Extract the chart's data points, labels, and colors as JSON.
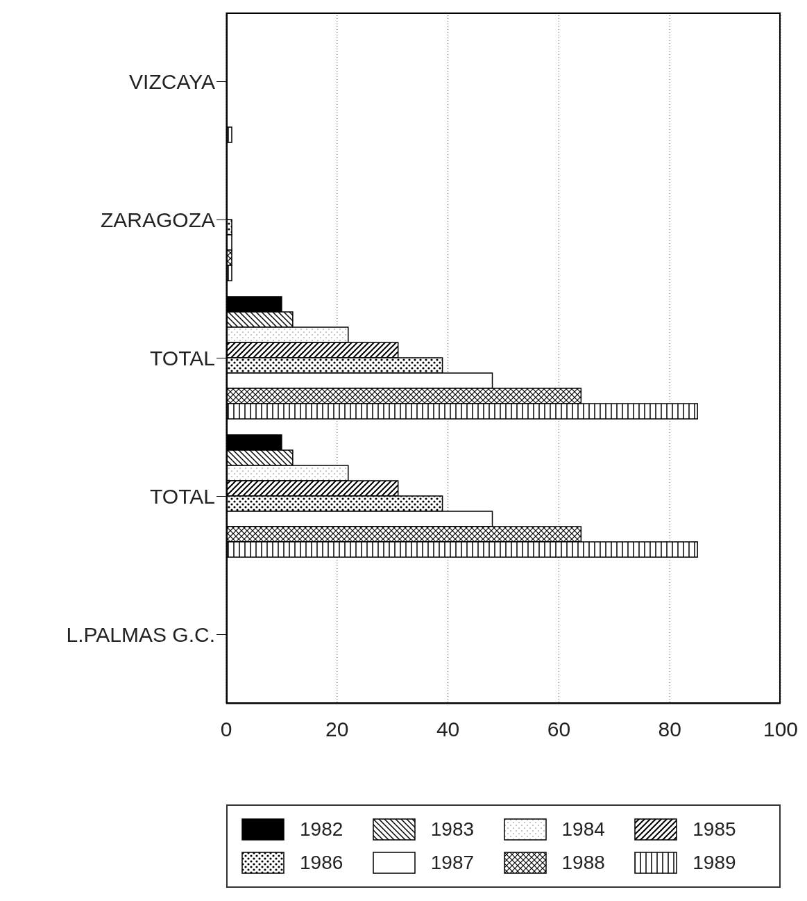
{
  "chart_data": {
    "type": "bar",
    "orientation": "horizontal",
    "categories": [
      "VIZCAYA",
      "ZARAGOZA",
      "TOTAL",
      "TOTAL",
      "L.PALMAS G.C."
    ],
    "series": [
      {
        "name": "1982",
        "color": "#000000",
        "values": [
          0,
          0,
          10,
          10,
          0
        ]
      },
      {
        "name": "1983",
        "color": "#000000",
        "values": [
          0,
          0,
          12,
          12,
          0
        ]
      },
      {
        "name": "1984",
        "color": "#000000",
        "values": [
          0,
          0,
          22,
          22,
          0
        ]
      },
      {
        "name": "1985",
        "color": "#000000",
        "values": [
          0,
          0,
          31,
          31,
          0
        ]
      },
      {
        "name": "1986",
        "color": "#000000",
        "values": [
          0,
          1,
          39,
          39,
          0
        ]
      },
      {
        "name": "1987",
        "color": "#000000",
        "values": [
          0,
          1,
          48,
          48,
          0
        ]
      },
      {
        "name": "1988",
        "color": "#000000",
        "values": [
          0,
          1,
          64,
          64,
          0
        ]
      },
      {
        "name": "1989",
        "color": "#000000",
        "values": [
          1,
          1,
          85,
          85,
          0
        ]
      }
    ],
    "xlim": [
      0,
      100
    ],
    "xticks": [
      0,
      20,
      40,
      60,
      80,
      100
    ],
    "grid": "x",
    "legend": "bottom"
  }
}
